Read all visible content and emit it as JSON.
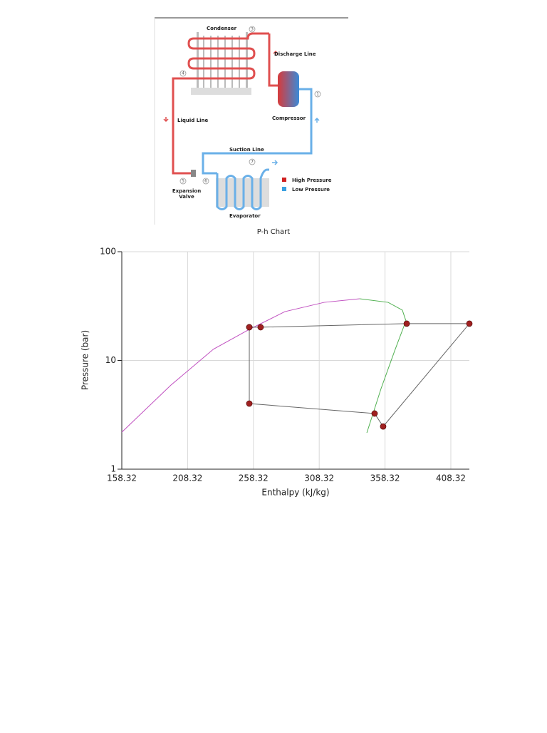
{
  "diagram": {
    "labels": {
      "condenser": "Condenser",
      "discharge_line": "Discharge Line",
      "compressor": "Compressor",
      "liquid_line": "Liquid Line",
      "suction_line": "Suction Line",
      "expansion_valve": [
        "Expansion",
        "Valve"
      ],
      "evaporator": "Evaporator"
    },
    "points": [
      "1",
      "3",
      "4",
      "5",
      "6",
      "7"
    ],
    "legend": [
      "High Pressure",
      "Low Pressure"
    ]
  },
  "chart_data": {
    "type": "line",
    "title": "P-h Chart",
    "x_label": "Enthalpy (kJ/kg)",
    "y_label": "Pressure (bar)",
    "xlim": [
      158.32,
      422.4
    ],
    "xticks": [
      158.32,
      208.32,
      258.32,
      308.32,
      358.32,
      408.32
    ],
    "ylim": [
      1,
      100
    ],
    "yticks": [
      1,
      10,
      100
    ],
    "log_y": true,
    "grid": true,
    "series": [
      {
        "color": "#c050c0",
        "x": [
          158.32,
          195.7,
          228,
          255.2,
          282.2,
          312,
          339
        ],
        "values": [
          2.19,
          5.94,
          12.7,
          19.3,
          28.1,
          34.2,
          36.9
        ]
      },
      {
        "color": "#50b050",
        "x": [
          339,
          360.7,
          371.5,
          374.2,
          366.1,
          355.3,
          344.5
        ],
        "values": [
          36.9,
          34.2,
          29,
          23.1,
          12.7,
          5.51,
          2.16
        ]
      },
      {
        "color": "#666666",
        "marker_color": "#a02020",
        "x": [
          255.2,
          263.8,
          374.8,
          422.4,
          356.9,
          350.4,
          255.2,
          255.2
        ],
        "values": [
          20.2,
          20.2,
          21.8,
          21.8,
          2.47,
          3.25,
          4.01,
          20.2
        ]
      }
    ]
  }
}
